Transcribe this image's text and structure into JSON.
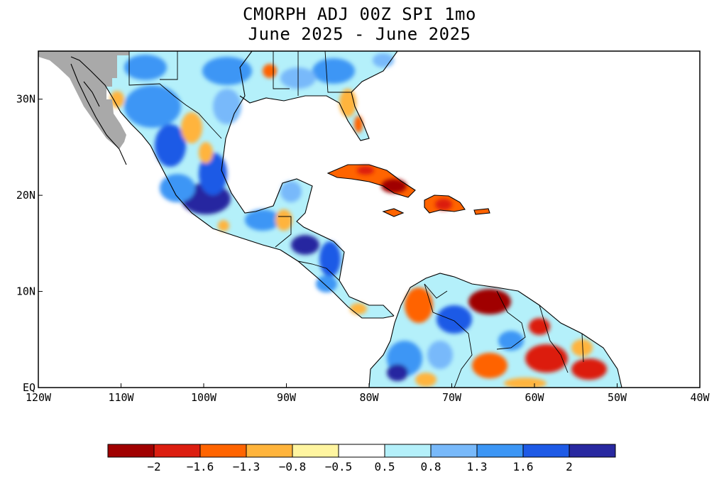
{
  "title": "CMORPH ADJ 00Z SPI 1mo",
  "subtitle": "June 2025 - June 2025",
  "map": {
    "lon_range": [
      -120,
      -40
    ],
    "lat_range": [
      0,
      35
    ],
    "x_ticks": [
      "120W",
      "110W",
      "100W",
      "90W",
      "80W",
      "70W",
      "60W",
      "50W",
      "40W"
    ],
    "y_ticks": [
      "EQ",
      "10N",
      "20N",
      "30N"
    ],
    "missing_color": "#a9a9a9",
    "coast_color": "#000000"
  },
  "colorbar": {
    "colors": [
      "#a00000",
      "#dc1e10",
      "#ff6400",
      "#ffb43c",
      "#fff5a0",
      "#ffffff",
      "#b4f0fa",
      "#78b9fa",
      "#3c96f5",
      "#1e5ae6",
      "#2828a0"
    ],
    "labels": [
      "−2",
      "−1.6",
      "−1.3",
      "−0.8",
      "−0.5",
      "0.5",
      "0.8",
      "1.3",
      "1.6",
      "2"
    ]
  }
}
